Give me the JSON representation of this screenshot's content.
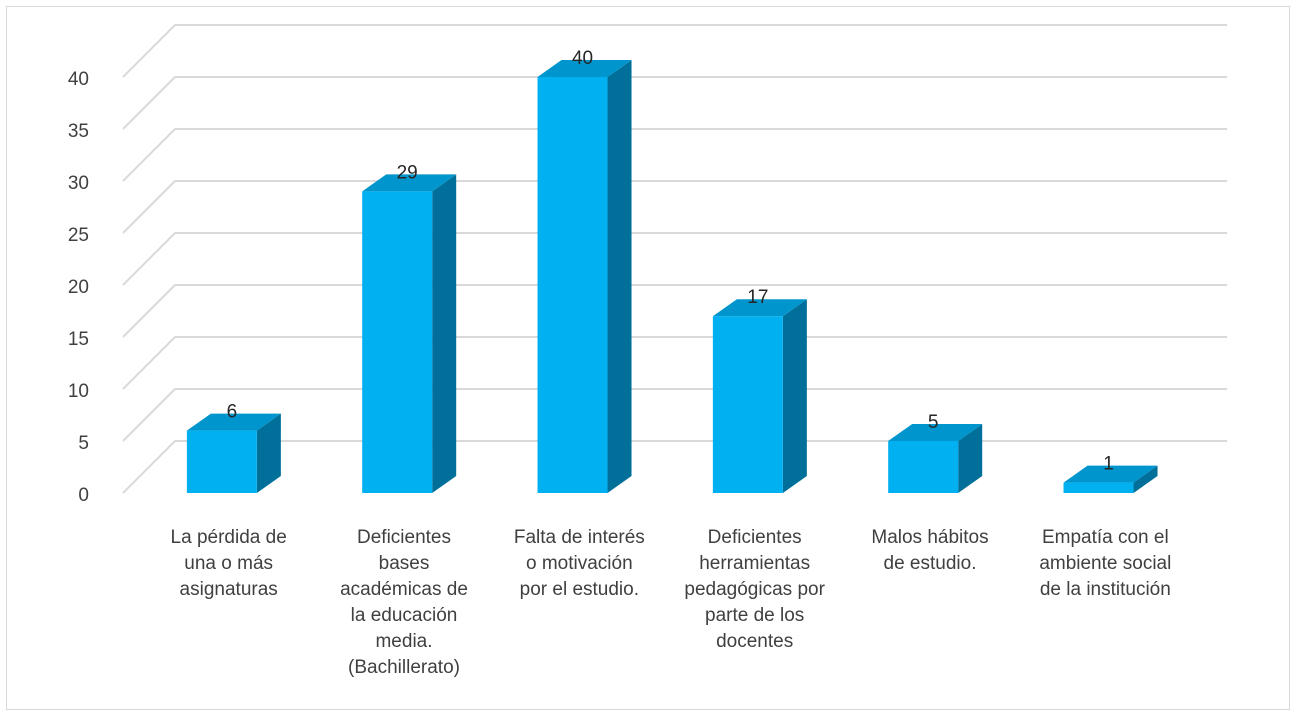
{
  "chart_data": {
    "type": "bar",
    "title": "",
    "xlabel": "",
    "ylabel": "",
    "categories": [
      [
        "La pérdida de",
        "una o más",
        "asignaturas"
      ],
      [
        "Deficientes",
        "bases",
        "académicas de",
        "la educación",
        "media.",
        "(Bachillerato)"
      ],
      [
        "Falta de interés",
        "o motivación",
        "por el estudio."
      ],
      [
        "Deficientes",
        "herramientas",
        "pedagógicas por",
        "parte de los",
        "docentes"
      ],
      [
        "Malos hábitos",
        "de estudio."
      ],
      [
        "Empatía con el",
        "ambiente social",
        "de la institución"
      ]
    ],
    "values": [
      6,
      29,
      40,
      17,
      5,
      1
    ],
    "ylim": [
      0,
      40
    ],
    "yticks": [
      0,
      5,
      10,
      15,
      20,
      25,
      30,
      35,
      40
    ],
    "grid": true,
    "legend": "none",
    "three_d": true,
    "colors": {
      "front": "#00b0f0",
      "side": "#006f99",
      "top": "#0095cc",
      "grid": "#d9d9d9",
      "text": "#404040",
      "label": "#262626"
    }
  }
}
